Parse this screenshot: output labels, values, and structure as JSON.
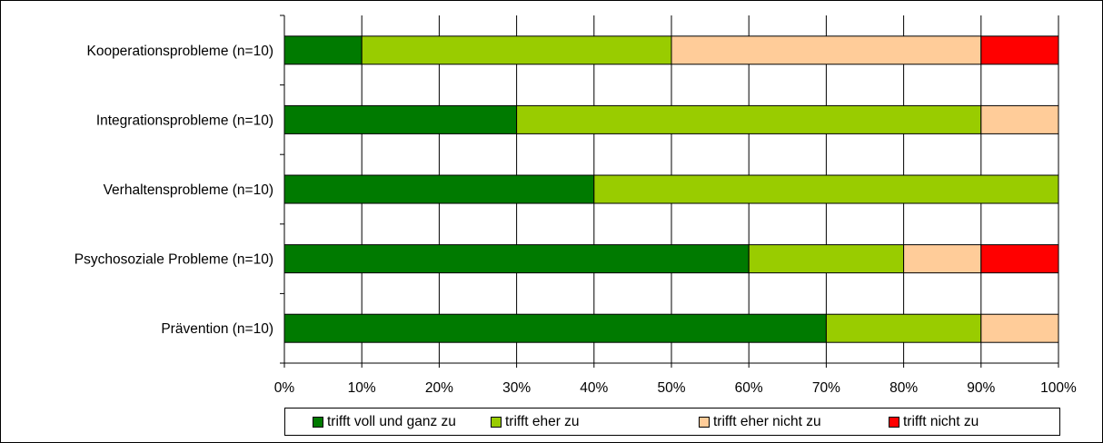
{
  "chart_data": {
    "type": "bar",
    "orientation": "horizontal",
    "stacked": true,
    "percent_stacked": true,
    "categories": [
      "Kooperationsprobleme (n=10)",
      "Integrationsprobleme (n=10)",
      "Verhaltensprobleme (n=10)",
      "Psychosoziale Probleme (n=10)",
      "Prävention (n=10)"
    ],
    "series": [
      {
        "name": "trifft voll und ganz zu",
        "color": "#007a00",
        "values": [
          10,
          30,
          40,
          60,
          70
        ]
      },
      {
        "name": "trifft eher zu",
        "color": "#99cc00",
        "values": [
          40,
          60,
          60,
          20,
          20
        ]
      },
      {
        "name": "trifft eher nicht zu",
        "color": "#ffcc99",
        "values": [
          40,
          10,
          0,
          10,
          10
        ]
      },
      {
        "name": "trifft nicht zu",
        "color": "#ff0000",
        "values": [
          10,
          0,
          0,
          10,
          0
        ]
      }
    ],
    "xlim": [
      0,
      100
    ],
    "x_ticks": [
      "0%",
      "10%",
      "20%",
      "30%",
      "40%",
      "50%",
      "60%",
      "70%",
      "80%",
      "90%",
      "100%"
    ],
    "grid": "vertical",
    "legend_position": "bottom"
  }
}
